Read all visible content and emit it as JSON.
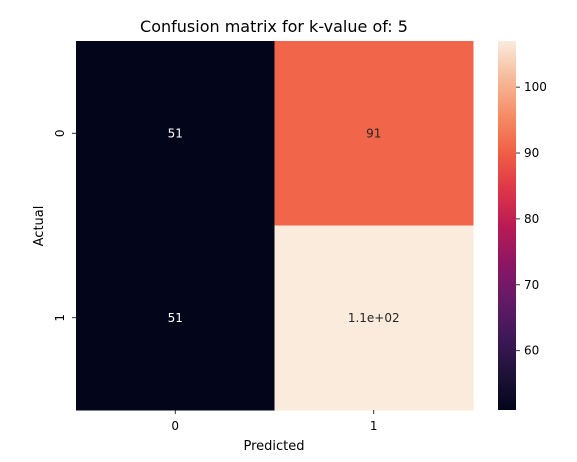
{
  "chart_data": {
    "type": "heatmap",
    "title": "Confusion matrix for k-value of: 5",
    "xlabel": "Predicted",
    "ylabel": "Actual",
    "x_categories": [
      "0",
      "1"
    ],
    "y_categories": [
      "0",
      "1"
    ],
    "values": [
      [
        51,
        91
      ],
      [
        51,
        107
      ]
    ],
    "annotations": [
      [
        "51",
        "91"
      ],
      [
        "51",
        "1.1e+02"
      ]
    ],
    "colorbar": {
      "range": [
        51,
        107
      ],
      "ticks": [
        60,
        70,
        80,
        90,
        100
      ],
      "tick_labels": [
        "60",
        "70",
        "80",
        "90",
        "100"
      ],
      "colormap": "rocket"
    }
  }
}
